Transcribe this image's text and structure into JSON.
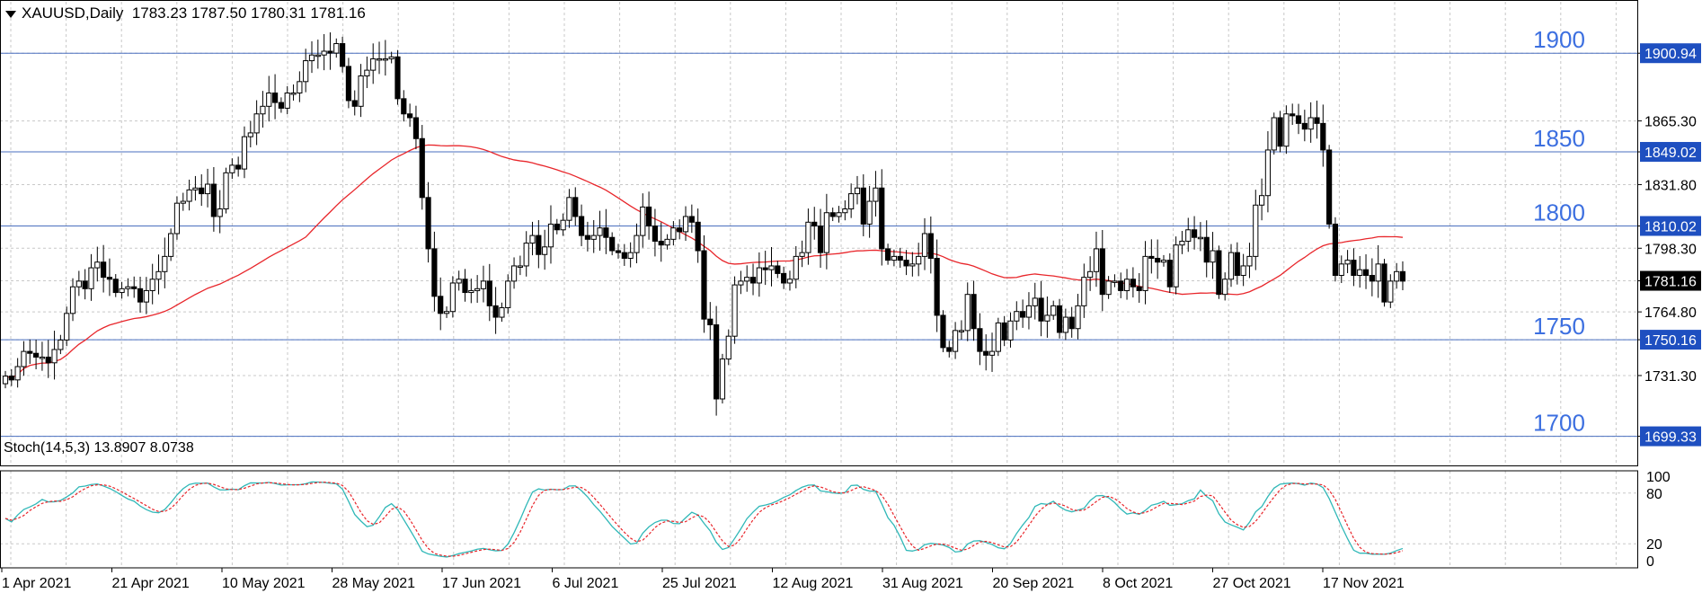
{
  "header": {
    "symbol": "XAUUSD,Daily",
    "ohlc": "1783.23 1787.50 1780.31 1781.16"
  },
  "stoch_header": "Stoch(14,5,3) 13.8907 8.0738",
  "colors": {
    "candle": "#000000",
    "ma_line": "#e8262b",
    "level_line": "#4a6fbf",
    "level_label": "#3c6fe0",
    "price_tag_bg": "#1e4fc0",
    "current_tag_bg": "#000000",
    "stoch_main": "#30b8b8",
    "stoch_signal": "#e8262b",
    "grid": "#c8c8c8"
  },
  "chart_data": [
    {
      "type": "candlestick",
      "title": "XAUUSD,Daily",
      "x_ticks": [
        "1 Apr 2021",
        "21 Apr 2021",
        "10 May 2021",
        "28 May 2021",
        "17 Jun 2021",
        "6 Jul 2021",
        "25 Jul 2021",
        "12 Aug 2021",
        "31 Aug 2021",
        "20 Sep 2021",
        "8 Oct 2021",
        "27 Oct 2021",
        "17 Nov 2021"
      ],
      "y_ticks": [
        1900.94,
        1865.3,
        1849.02,
        1831.8,
        1810.02,
        1798.3,
        1781.16,
        1764.8,
        1750.16,
        1731.3,
        1699.33
      ],
      "ylim": [
        1684,
        1928
      ],
      "levels": [
        {
          "label": "1900",
          "price": 1900.94,
          "tag": "1900.94"
        },
        {
          "label": "1850",
          "price": 1849.02,
          "tag": "1849.02"
        },
        {
          "label": "1800",
          "price": 1810.02,
          "tag": "1810.02"
        },
        {
          "label": "1750",
          "price": 1750.16,
          "tag": "1750.16"
        },
        {
          "label": "1700",
          "price": 1699.33,
          "tag": "1699.33"
        }
      ],
      "current_price": "1781.16",
      "closes": [
        1731,
        1729,
        1736,
        1744,
        1743,
        1741,
        1741,
        1738,
        1745,
        1750,
        1764,
        1778,
        1781,
        1777,
        1788,
        1791,
        1783,
        1782,
        1775,
        1777,
        1778,
        1777,
        1770,
        1776,
        1782,
        1786,
        1794,
        1806,
        1822,
        1823,
        1829,
        1830,
        1827,
        1832,
        1815,
        1819,
        1838,
        1842,
        1840,
        1857,
        1859,
        1869,
        1873,
        1880,
        1875,
        1872,
        1880,
        1880,
        1886,
        1897,
        1900,
        1900,
        1902,
        1901,
        1906,
        1894,
        1876,
        1873,
        1889,
        1892,
        1898,
        1898,
        1898,
        1899,
        1877,
        1869,
        1867,
        1856,
        1825,
        1798,
        1773,
        1764,
        1765,
        1780,
        1782,
        1775,
        1776,
        1777,
        1781,
        1768,
        1762,
        1767,
        1781,
        1789,
        1789,
        1801,
        1805,
        1795,
        1799,
        1811,
        1808,
        1813,
        1825,
        1815,
        1805,
        1803,
        1805,
        1809,
        1804,
        1797,
        1796,
        1793,
        1796,
        1805,
        1820,
        1810,
        1802,
        1800,
        1803,
        1809,
        1807,
        1815,
        1812,
        1797,
        1761,
        1758,
        1719,
        1740,
        1752,
        1779,
        1781,
        1783,
        1780,
        1788,
        1787,
        1789,
        1785,
        1780,
        1782,
        1794,
        1796,
        1812,
        1810,
        1796,
        1817,
        1815,
        1817,
        1819,
        1827,
        1830,
        1811,
        1823,
        1830,
        1798,
        1792,
        1794,
        1792,
        1789,
        1790,
        1794,
        1806,
        1793,
        1763,
        1746,
        1744,
        1755,
        1755,
        1774,
        1756,
        1744,
        1742,
        1744,
        1759,
        1750,
        1760,
        1765,
        1762,
        1768,
        1772,
        1760,
        1763,
        1768,
        1754,
        1762,
        1756,
        1768,
        1783,
        1786,
        1798,
        1774,
        1781,
        1781,
        1776,
        1782,
        1778,
        1776,
        1794,
        1793,
        1791,
        1792,
        1778,
        1800,
        1802,
        1808,
        1804,
        1804,
        1791,
        1797,
        1774,
        1782,
        1796,
        1784,
        1789,
        1794,
        1821,
        1826,
        1850,
        1867,
        1852,
        1869,
        1868,
        1864,
        1861,
        1867,
        1864,
        1850,
        1811,
        1784,
        1790,
        1792,
        1784,
        1787,
        1784,
        1781,
        1790,
        1770,
        1781,
        1786,
        1781
      ]
    },
    {
      "type": "line",
      "title": "Stoch(14,5,3) 13.8907 8.0738",
      "y_ticks": [
        100,
        80,
        20,
        0
      ],
      "ylim": [
        0,
        100
      ]
    }
  ]
}
